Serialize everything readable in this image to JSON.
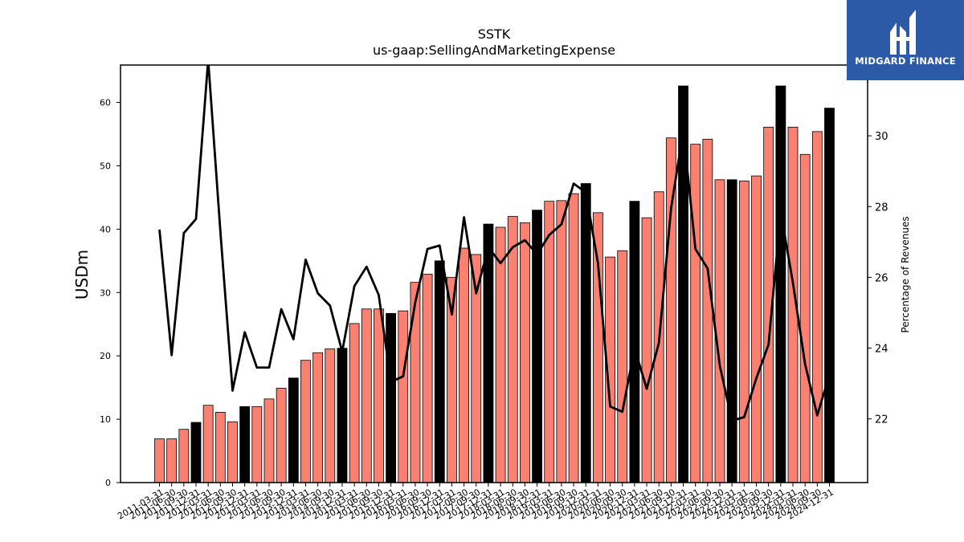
{
  "chart_data": {
    "type": "bar",
    "title": "SSTK",
    "subtitle": "us-gaap:SellingAndMarketingExpense",
    "ylabel": "USDm",
    "y2label": "Percentage of Revenues",
    "ylim": [
      0,
      65.9
    ],
    "y2lim": [
      20.2,
      32.0
    ],
    "yticks": [
      0,
      10,
      20,
      30,
      40,
      50,
      60
    ],
    "y2ticks": [
      22,
      24,
      26,
      28,
      30
    ],
    "categories": [
      "2011-03-31",
      "2011-06-30",
      "2011-09-30",
      "2011-12-31",
      "2012-03-31",
      "2012-06-30",
      "2012-09-30",
      "2012-12-31",
      "2013-03-31",
      "2013-06-30",
      "2013-09-30",
      "2013-12-31",
      "2014-03-31",
      "2014-06-30",
      "2014-09-30",
      "2014-12-31",
      "2015-03-31",
      "2015-06-30",
      "2015-09-30",
      "2015-12-31",
      "2016-03-31",
      "2016-06-30",
      "2016-09-30",
      "2016-12-31",
      "2017-03-31",
      "2017-06-30",
      "2017-09-30",
      "2017-12-31",
      "2018-03-31",
      "2018-06-30",
      "2018-09-30",
      "2018-12-31",
      "2019-03-31",
      "2019-06-30",
      "2019-09-30",
      "2019-12-31",
      "2020-03-31",
      "2020-06-30",
      "2020-09-30",
      "2020-12-31",
      "2021-03-31",
      "2021-06-30",
      "2021-09-30",
      "2021-12-31",
      "2022-03-31",
      "2022-06-30",
      "2022-09-30",
      "2022-12-31",
      "2023-03-31",
      "2023-06-30",
      "2023-09-30",
      "2023-12-31",
      "2024-03-31",
      "2024-06-30",
      "2024-09-30",
      "2024-12-31"
    ],
    "series": [
      {
        "kind": "bar",
        "values": [
          6.9,
          6.9,
          8.4,
          9.5,
          12.2,
          11.1,
          9.6,
          12.0,
          12.0,
          13.2,
          14.9,
          16.5,
          19.3,
          20.5,
          21.1,
          21.2,
          25.1,
          27.4,
          27.4,
          26.7,
          27.1,
          31.6,
          32.9,
          35.0,
          32.4,
          37.0,
          36.0,
          40.8,
          40.3,
          42.0,
          41.0,
          43.0,
          44.4,
          44.5,
          45.6,
          47.2,
          42.6,
          35.6,
          36.6,
          44.4,
          41.8,
          45.9,
          54.4,
          62.6,
          53.4,
          54.2,
          47.8,
          47.8,
          47.6,
          48.4,
          56.1,
          62.6,
          56.1,
          51.8,
          55.4,
          59.1
        ],
        "colors": [
          "#fa8072",
          "#fa8072",
          "#fa8072",
          "#000000",
          "#fa8072",
          "#fa8072",
          "#fa8072",
          "#000000",
          "#fa8072",
          "#fa8072",
          "#fa8072",
          "#000000",
          "#fa8072",
          "#fa8072",
          "#fa8072",
          "#000000",
          "#fa8072",
          "#fa8072",
          "#fa8072",
          "#000000",
          "#fa8072",
          "#fa8072",
          "#fa8072",
          "#000000",
          "#fa8072",
          "#fa8072",
          "#fa8072",
          "#000000",
          "#fa8072",
          "#fa8072",
          "#fa8072",
          "#000000",
          "#fa8072",
          "#fa8072",
          "#fa8072",
          "#000000",
          "#fa8072",
          "#fa8072",
          "#fa8072",
          "#000000",
          "#fa8072",
          "#fa8072",
          "#fa8072",
          "#000000",
          "#fa8072",
          "#fa8072",
          "#fa8072",
          "#000000",
          "#fa8072",
          "#fa8072",
          "#fa8072",
          "#000000",
          "#fa8072",
          "#fa8072",
          "#fa8072",
          "#000000"
        ]
      },
      {
        "kind": "line",
        "axis": "right",
        "color": "#000000",
        "values": [
          27.35,
          23.8,
          27.25,
          27.65,
          32.15,
          27.3,
          22.8,
          24.45,
          23.45,
          23.45,
          25.1,
          24.25,
          26.5,
          25.55,
          25.2,
          23.9,
          25.75,
          26.3,
          25.5,
          23.05,
          23.2,
          25.3,
          26.8,
          26.9,
          24.95,
          27.7,
          25.55,
          26.85,
          26.4,
          26.85,
          27.05,
          26.65,
          27.2,
          27.5,
          28.65,
          28.4,
          26.4,
          22.35,
          22.2,
          24.0,
          22.85,
          24.15,
          27.95,
          30.15,
          26.8,
          26.25,
          23.5,
          21.95,
          22.05,
          23.15,
          24.1,
          27.85,
          25.85,
          23.55,
          22.1,
          23.25
        ]
      }
    ]
  },
  "logo": {
    "text": "MIDGARD FINANCE",
    "color": "#2c5aa6"
  }
}
